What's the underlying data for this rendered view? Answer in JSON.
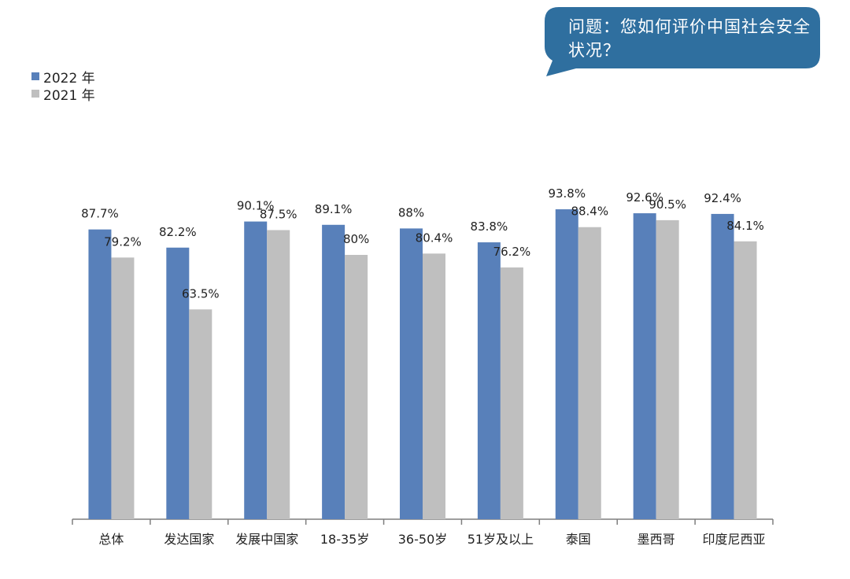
{
  "question": {
    "text": "问题：您如何评价中国社会安全状况？"
  },
  "colors": {
    "bubble": "#2f6f9f",
    "series_2022": "#5880ba",
    "series_2021": "#bfbfbf",
    "axis": "#7f7f7f"
  },
  "legend": [
    {
      "label": "2022 年",
      "color": "#5880ba"
    },
    {
      "label": "2021 年",
      "color": "#bfbfbf"
    }
  ],
  "chart_data": {
    "type": "bar",
    "categories": [
      "总体",
      "发达国家",
      "发展中国家",
      "18-35岁",
      "36-50岁",
      "51岁及以上",
      "泰国",
      "墨西哥",
      "印度尼西亚"
    ],
    "series": [
      {
        "name": "2022 年",
        "values": [
          87.7,
          82.2,
          90.1,
          89.1,
          88,
          83.8,
          93.8,
          92.6,
          92.4
        ],
        "labels": [
          "87.7%",
          "82.2%",
          "90.1%",
          "89.1%",
          "88%",
          "83.8%",
          "93.8%",
          "92.6%",
          "92.4%"
        ]
      },
      {
        "name": "2021 年",
        "values": [
          79.2,
          63.5,
          87.5,
          80,
          80.4,
          76.2,
          88.4,
          90.5,
          84.1
        ],
        "labels": [
          "79.2%",
          "63.5%",
          "87.5%",
          "80%",
          "80.4%",
          "76.2%",
          "88.4%",
          "90.5%",
          "84.1%"
        ]
      }
    ],
    "ylim": [
      0,
      100
    ],
    "grid": false,
    "legend_position": "top-left"
  }
}
